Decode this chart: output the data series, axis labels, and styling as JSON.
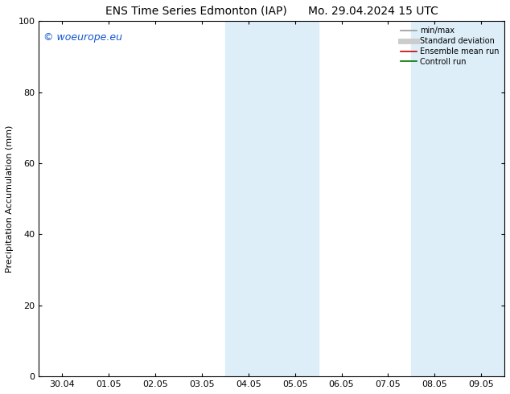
{
  "title_left": "ENS Time Series Edmonton (IAP)",
  "title_right": "Mo. 29.04.2024 15 UTC",
  "ylabel": "Precipitation Accumulation (mm)",
  "ylim": [
    0,
    100
  ],
  "yticks": [
    0,
    20,
    40,
    60,
    80,
    100
  ],
  "xlabels": [
    "30.04",
    "01.05",
    "02.05",
    "03.05",
    "04.05",
    "05.05",
    "06.05",
    "07.05",
    "08.05",
    "09.05"
  ],
  "x_tick_positions": [
    0,
    1,
    2,
    3,
    4,
    5,
    6,
    7,
    8,
    9
  ],
  "xlim": [
    -0.5,
    9.5
  ],
  "shaded_bands": [
    {
      "x_start": 3.5,
      "x_end": 4.5
    },
    {
      "x_start": 4.5,
      "x_end": 5.5
    },
    {
      "x_start": 7.5,
      "x_end": 8.5
    },
    {
      "x_start": 8.5,
      "x_end": 9.5
    }
  ],
  "shade_color": "#ddeef8",
  "background_color": "#ffffff",
  "watermark": "© woeurope.eu",
  "watermark_color": "#1155cc",
  "legend_items": [
    {
      "label": "min/max",
      "color": "#999999",
      "linewidth": 1.2,
      "type": "line"
    },
    {
      "label": "Standard deviation",
      "color": "#cccccc",
      "linewidth": 5.0,
      "type": "line"
    },
    {
      "label": "Ensemble mean run",
      "color": "#cc0000",
      "linewidth": 1.2,
      "type": "line"
    },
    {
      "label": "Controll run",
      "color": "#007700",
      "linewidth": 1.2,
      "type": "line"
    }
  ],
  "title_fontsize": 10,
  "ylabel_fontsize": 8,
  "tick_fontsize": 8,
  "legend_fontsize": 7,
  "watermark_fontsize": 9
}
